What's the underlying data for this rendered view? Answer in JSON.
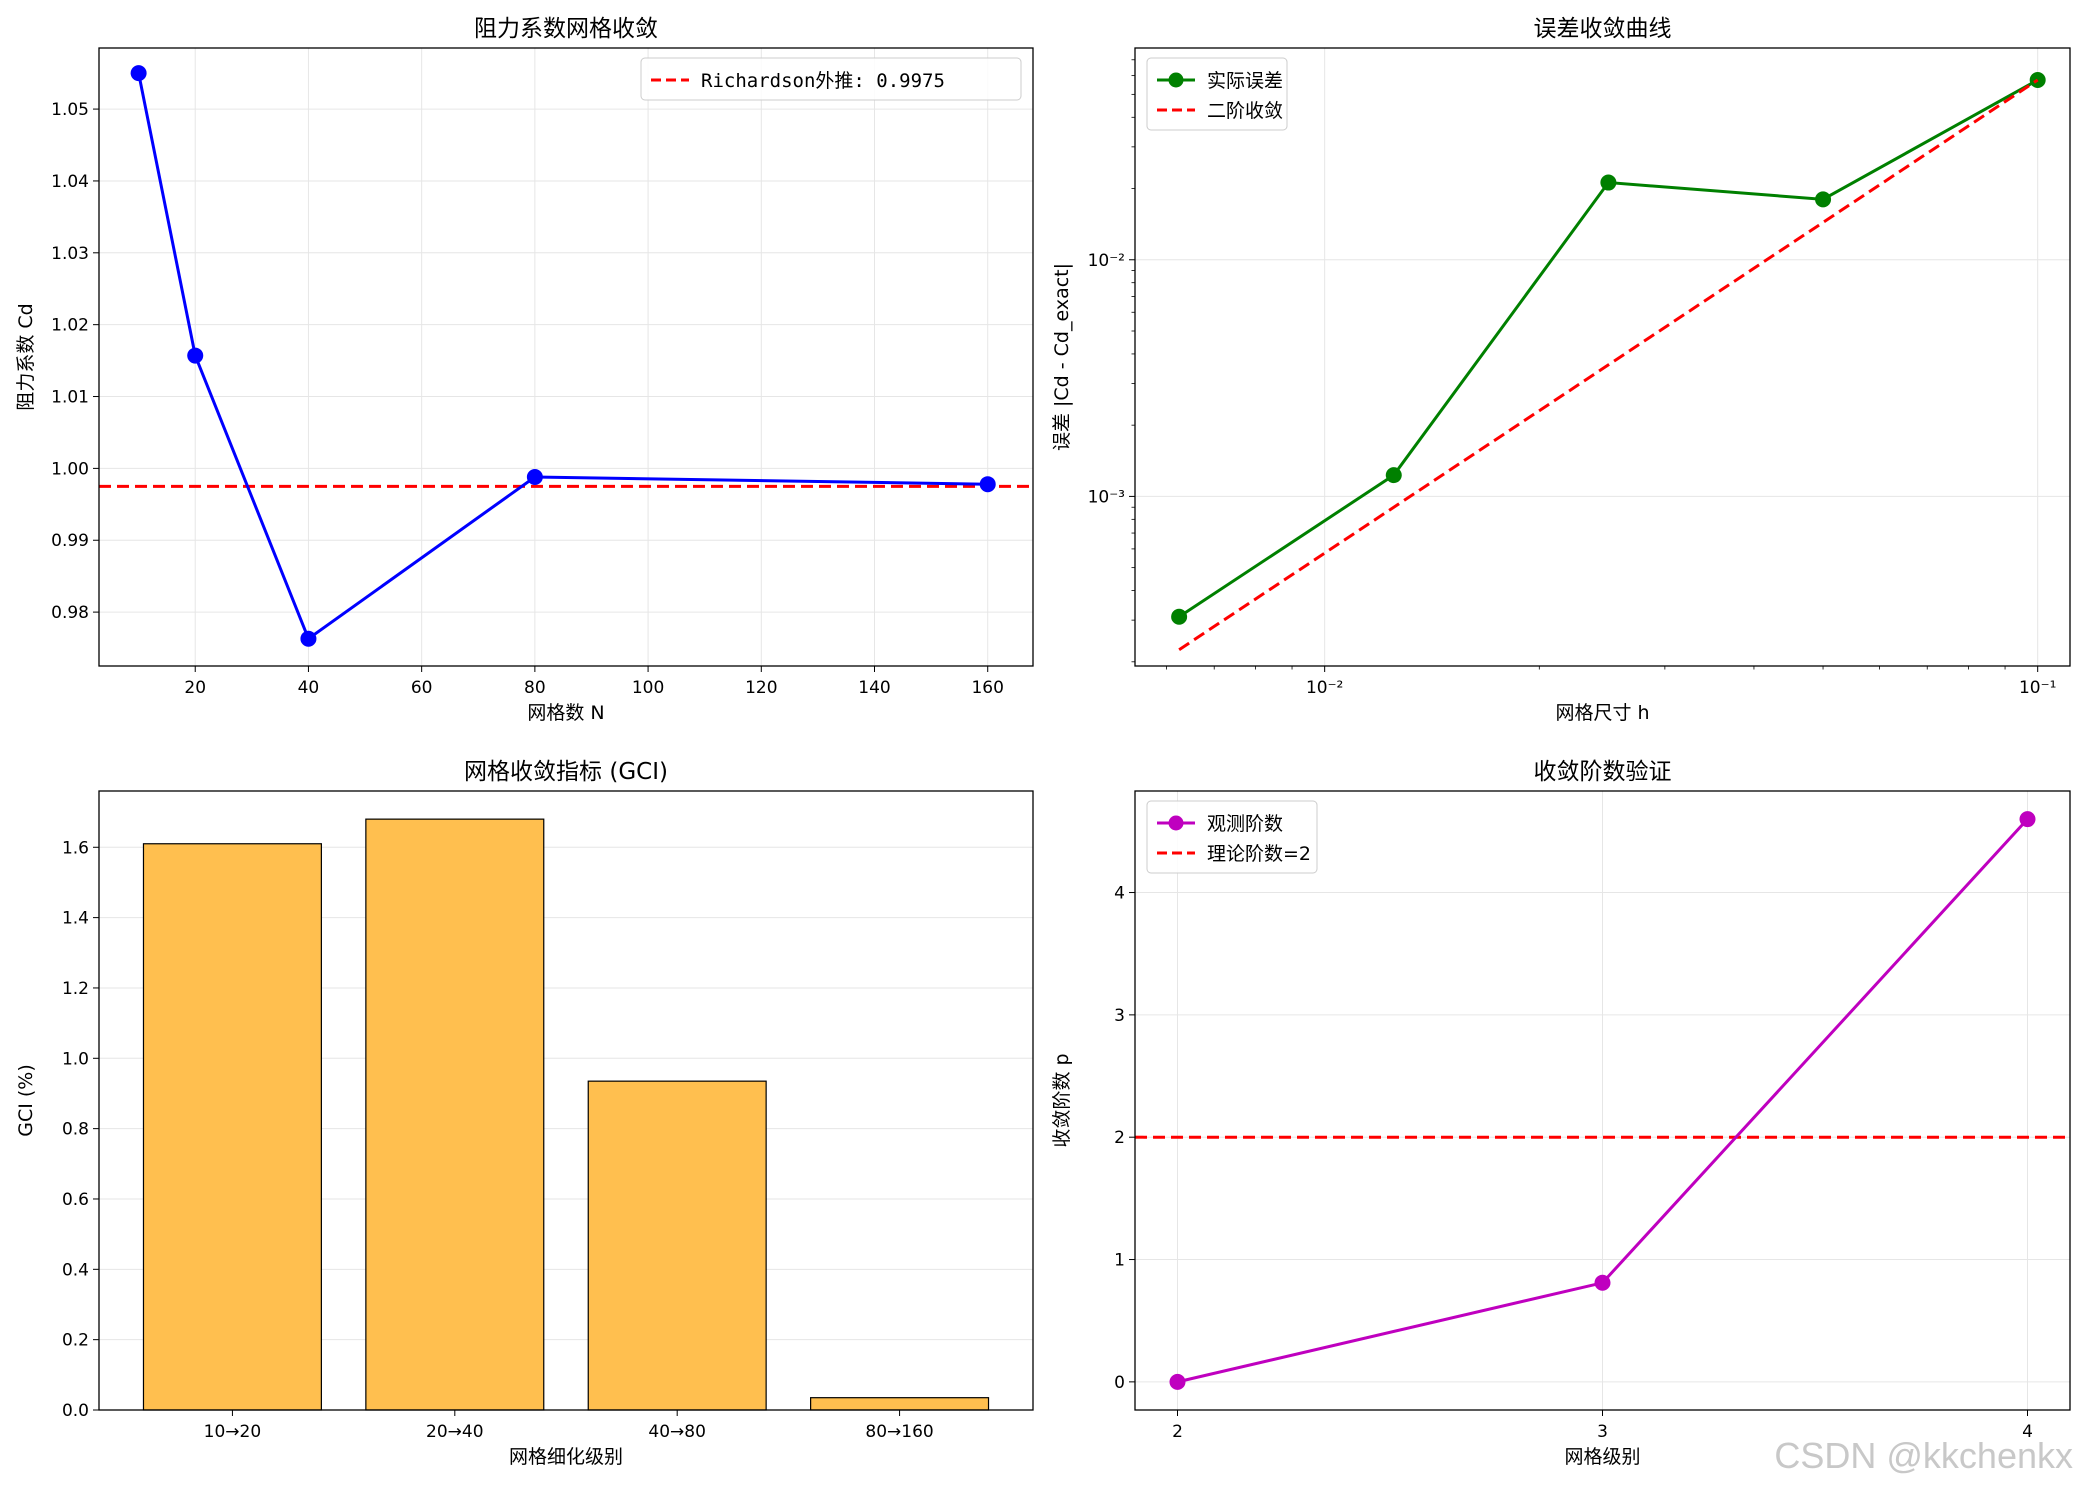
{
  "watermark": "CSDN @kkchenkx",
  "chart_data": [
    {
      "type": "line",
      "title": "阻力系数网格收敛",
      "xlabel": "网格数 N",
      "ylabel": "阻力系数 Cd",
      "xlim": [
        3,
        168
      ],
      "ylim": [
        0.9725,
        1.0585
      ],
      "xticks": [
        20,
        40,
        60,
        80,
        100,
        120,
        140,
        160
      ],
      "yticks": [
        0.98,
        0.99,
        1.0,
        1.01,
        1.02,
        1.03,
        1.04,
        1.05
      ],
      "ytick_labels": [
        "0.98",
        "0.99",
        "1.00",
        "1.01",
        "1.02",
        "1.03",
        "1.04",
        "1.05"
      ],
      "grid": true,
      "series": [
        {
          "name": "",
          "x": [
            10,
            20,
            40,
            80,
            160
          ],
          "values": [
            1.055,
            1.0157,
            0.9763,
            0.9988,
            0.9978
          ],
          "color": "#0000ff"
        }
      ],
      "hlines": [
        {
          "name": "Richardson外推: 0.9975",
          "y": 0.9975,
          "color": "#ff0000"
        }
      ],
      "legend": "upper-right"
    },
    {
      "type": "line",
      "scale": "log",
      "title": "误差收敛曲线",
      "xlabel": "网格尺寸 h",
      "ylabel": "误差 |Cd - Cd_exact|",
      "xlim": [
        0.00542,
        0.111
      ],
      "ylim": [
        0.000192,
        0.0785
      ],
      "xticks": [
        0.01,
        0.1
      ],
      "xtick_labels": [
        "10⁻²",
        "10⁻¹"
      ],
      "yticks": [
        0.001,
        0.01
      ],
      "ytick_labels": [
        "10⁻³",
        "10⁻²"
      ],
      "grid": true,
      "series": [
        {
          "name": "实际误差",
          "x": [
            0.00625,
            0.0125,
            0.025,
            0.05,
            0.1
          ],
          "values": [
            0.00031,
            0.00123,
            0.0212,
            0.018,
            0.0575
          ],
          "color": "#008000",
          "markers": true
        },
        {
          "name": "二阶收敛",
          "x": [
            0.00625,
            0.1
          ],
          "values": [
            0.000225,
            0.0575
          ],
          "color": "#ff0000",
          "dashed": true
        }
      ],
      "legend": "upper-left"
    },
    {
      "type": "bar",
      "title": "网格收敛指标 (GCI)",
      "xlabel": "网格细化级别",
      "ylabel": "GCI (%)",
      "categories": [
        "10→20",
        "20→40",
        "40→80",
        "80→160"
      ],
      "values": [
        1.61,
        1.68,
        0.935,
        0.035
      ],
      "ylim": [
        0,
        1.76
      ],
      "yticks": [
        0.0,
        0.2,
        0.4,
        0.6,
        0.8,
        1.0,
        1.2,
        1.4,
        1.6
      ],
      "ytick_labels": [
        "0.0",
        "0.2",
        "0.4",
        "0.6",
        "0.8",
        "1.0",
        "1.2",
        "1.4",
        "1.6"
      ],
      "grid": true,
      "color": "#ffbf4f"
    },
    {
      "type": "line",
      "title": "收敛阶数验证",
      "xlabel": "网格级别",
      "ylabel": "收敛阶数 p",
      "xlim": [
        1.9,
        4.1
      ],
      "ylim": [
        -0.23,
        4.83
      ],
      "xticks": [
        2,
        3,
        4
      ],
      "yticks": [
        0,
        1,
        2,
        3,
        4
      ],
      "grid": true,
      "series": [
        {
          "name": "观测阶数",
          "x": [
            2,
            3,
            4
          ],
          "values": [
            0.0,
            0.81,
            4.6
          ],
          "color": "#bf00bf",
          "markers": true
        }
      ],
      "hlines": [
        {
          "name": "理论阶数=2",
          "y": 2,
          "color": "#ff0000"
        }
      ],
      "legend": "upper-left"
    }
  ]
}
